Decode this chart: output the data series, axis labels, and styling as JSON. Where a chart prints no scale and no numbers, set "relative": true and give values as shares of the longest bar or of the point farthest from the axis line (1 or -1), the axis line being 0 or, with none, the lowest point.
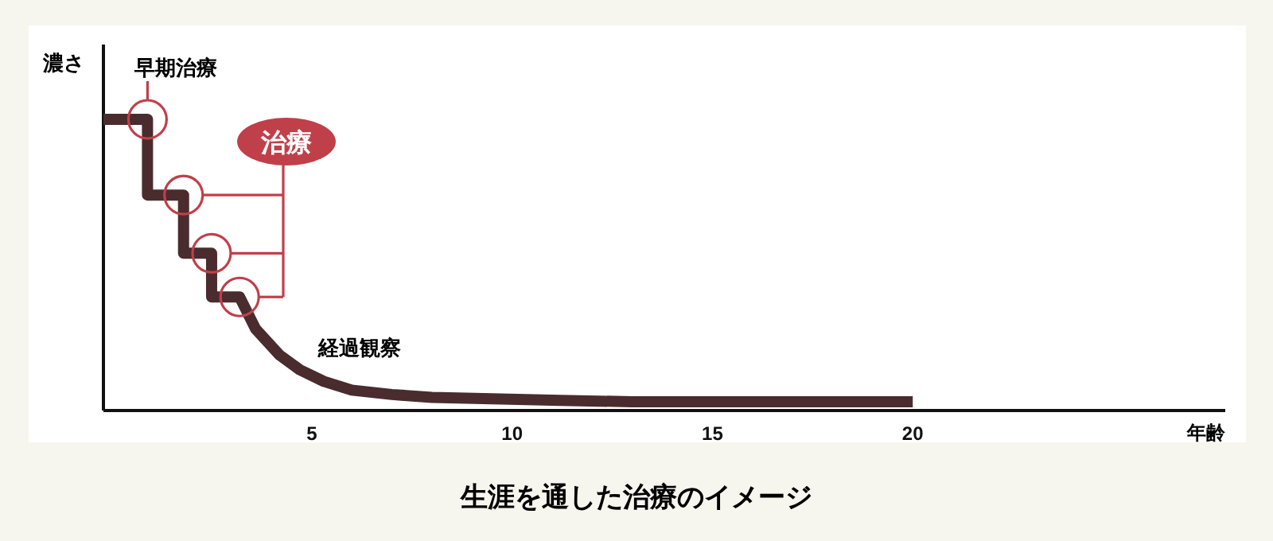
{
  "chart_data": {
    "type": "line",
    "title": "生涯を通した治療のイメージ",
    "ylabel": "濃さ",
    "xlabel": "年齢",
    "relative": true,
    "xlim": [
      -0.2,
      27.8
    ],
    "xticks": [
      5,
      10,
      15,
      20
    ],
    "series": [
      {
        "color": "#4a2c2e",
        "x": [
          -0.2,
          0.9,
          0.9,
          1.8,
          1.8,
          2.5,
          2.5,
          3.2,
          3.6,
          4.2,
          4.7,
          5.3,
          6.0,
          7.0,
          8.0,
          9.5,
          11.2,
          13,
          14.7,
          17,
          20
        ],
        "values": [
          1,
          1,
          0.74,
          0.74,
          0.54,
          0.54,
          0.39,
          0.39,
          0.28,
          0.19,
          0.14,
          0.1,
          0.07,
          0.055,
          0.045,
          0.04,
          0.035,
          0.03,
          0.03,
          0.03,
          0.03
        ]
      }
    ],
    "annotations": [
      {
        "text": "早期治療",
        "x": 0.9,
        "y": 1
      },
      "治療",
      {
        "text": "経過観察",
        "x": 6.0,
        "y": 0.07
      }
    ],
    "marker": "none",
    "line_style": "solid"
  }
}
